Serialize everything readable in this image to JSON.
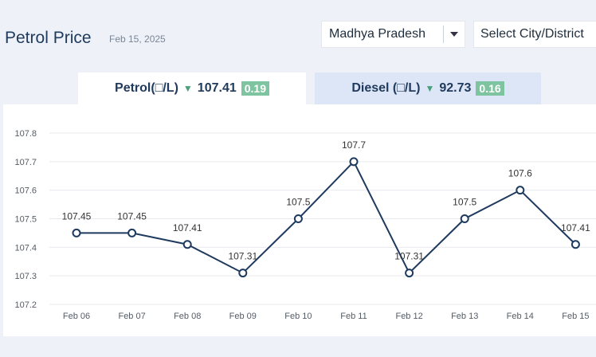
{
  "header": {
    "title": "Petrol Price",
    "date": "Feb 15, 2025"
  },
  "filters": {
    "state_value": "Madhya Pradesh",
    "city_placeholder": "Select City/District"
  },
  "tabs": [
    {
      "label": "Petrol(□/L)",
      "price": "107.41",
      "change": "0.19",
      "trend": "down-triangle-icon"
    },
    {
      "label": "Diesel (□/L)",
      "price": "92.73",
      "change": "0.16",
      "trend": "down-triangle-icon"
    }
  ],
  "colors": {
    "line": "#1e3a5f",
    "badge": "#7fc4a1",
    "down_arrow": "#49a07b",
    "active_tab": "#ffffff",
    "inactive_tab": "#dde6f6"
  },
  "chart_data": {
    "type": "line",
    "categories": [
      "Feb 06",
      "Feb 07",
      "Feb 08",
      "Feb 09",
      "Feb 10",
      "Feb 11",
      "Feb 12",
      "Feb 13",
      "Feb 14",
      "Feb 15"
    ],
    "values": [
      107.45,
      107.45,
      107.41,
      107.31,
      107.5,
      107.7,
      107.31,
      107.5,
      107.6,
      107.41
    ],
    "data_labels": [
      "107.45",
      "107.45",
      "107.41",
      "107.31",
      "107.5",
      "107.7",
      "107.31",
      "107.5",
      "107.6",
      "107.41"
    ],
    "y_ticks": [
      "107.8",
      "107.7",
      "107.6",
      "107.5",
      "107.4",
      "107.3",
      "107.2"
    ],
    "ylim": [
      107.2,
      107.8
    ],
    "grid": true,
    "markers": "hollow-circle"
  }
}
